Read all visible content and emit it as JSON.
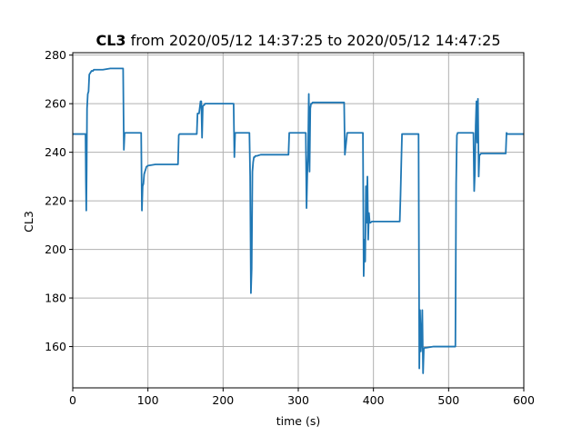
{
  "chart_data": {
    "type": "line",
    "title_bold": "CL3",
    "title_rest": " from 2020/05/12 14:37:25 to 2020/05/12 14:47:25",
    "xlabel": "time (s)",
    "ylabel": "CL3",
    "xlim": [
      0,
      600
    ],
    "ylim": [
      143,
      281
    ],
    "xticks": [
      0,
      100,
      200,
      300,
      400,
      500,
      600
    ],
    "yticks": [
      160,
      180,
      200,
      220,
      240,
      260,
      280
    ],
    "grid": true,
    "colors": {
      "line": "#1f77b4",
      "grid": "#b0b0b0",
      "axes": "#000000"
    },
    "series": [
      {
        "x": [
          0,
          17,
          17.5,
          18,
          18.5,
          19,
          20,
          21,
          22,
          24,
          25,
          26,
          27,
          28,
          30,
          40,
          50,
          60,
          67,
          68,
          69,
          70,
          75,
          80,
          85,
          91,
          92,
          93,
          94,
          95,
          96,
          97,
          98,
          100,
          110,
          120,
          130,
          140,
          141,
          142,
          143,
          150,
          160,
          165,
          166,
          168,
          170,
          171,
          172,
          173,
          175,
          176,
          177,
          180,
          190,
          200,
          210,
          214,
          215,
          216,
          217,
          220,
          230,
          235,
          236,
          237,
          238,
          239,
          240,
          241,
          242,
          243,
          245,
          250,
          260,
          270,
          280,
          287,
          288,
          290,
          300,
          310,
          311,
          312,
          313,
          314,
          315,
          316,
          317,
          318,
          319,
          320,
          322,
          325,
          330,
          340,
          350,
          360,
          361,
          362,
          365,
          370,
          375,
          380,
          385,
          386,
          387,
          388,
          389,
          390,
          391,
          392,
          393,
          394,
          395,
          396,
          398,
          400,
          410,
          420,
          430,
          435,
          436,
          437,
          438,
          440,
          450,
          460,
          461,
          462,
          463,
          464,
          465,
          466,
          467,
          468,
          470,
          480,
          490,
          500,
          508,
          509,
          510,
          511,
          512,
          513,
          515,
          520,
          525,
          530,
          533,
          534,
          535,
          536,
          537,
          538,
          539,
          540,
          541,
          542,
          543,
          544,
          545,
          550,
          560,
          570,
          575,
          576,
          577,
          578,
          580,
          590,
          600
        ],
        "y": [
          247.5,
          247.5,
          228,
          216,
          232,
          258,
          264,
          265,
          272,
          273,
          273.5,
          273.5,
          273.5,
          274,
          274,
          274,
          274.5,
          274.5,
          274.5,
          241,
          248,
          248,
          248,
          248,
          248,
          248,
          216,
          226,
          227,
          231,
          232,
          233,
          234,
          234.5,
          235,
          235,
          235,
          235,
          247,
          247.5,
          247.5,
          247.5,
          247.5,
          247.5,
          256,
          256,
          261,
          261,
          246,
          259,
          259.5,
          260,
          260,
          260,
          260,
          260,
          260,
          260,
          238,
          248,
          248,
          248,
          248,
          248,
          230,
          182,
          192,
          232,
          236,
          238,
          238,
          238.5,
          238.5,
          239,
          239,
          239,
          239,
          239,
          248,
          248,
          248,
          248,
          217,
          231,
          239,
          264,
          232,
          258,
          260,
          260,
          260.5,
          260.5,
          260.5,
          260.5,
          260.5,
          260.5,
          260.5,
          260.5,
          260.5,
          239,
          248,
          248,
          248,
          248,
          248,
          248,
          189,
          204,
          195,
          226,
          211,
          230,
          204,
          215,
          211,
          211,
          211.5,
          211.5,
          211.5,
          211.5,
          211.5,
          211.5,
          222,
          235,
          247.5,
          247.5,
          247.5,
          247.5,
          151,
          175,
          158,
          163,
          175,
          149,
          159,
          159.5,
          159.5,
          160,
          160,
          160,
          160,
          160,
          227,
          247,
          248,
          248,
          248,
          248,
          248,
          248,
          248,
          224,
          232,
          251,
          261,
          244,
          262,
          230,
          239,
          239,
          239.5,
          239.5,
          239.5,
          239.5,
          239.5,
          239.5,
          239.5,
          239.5,
          248,
          247.5,
          247.5,
          247.5,
          247.5
        ]
      }
    ]
  }
}
